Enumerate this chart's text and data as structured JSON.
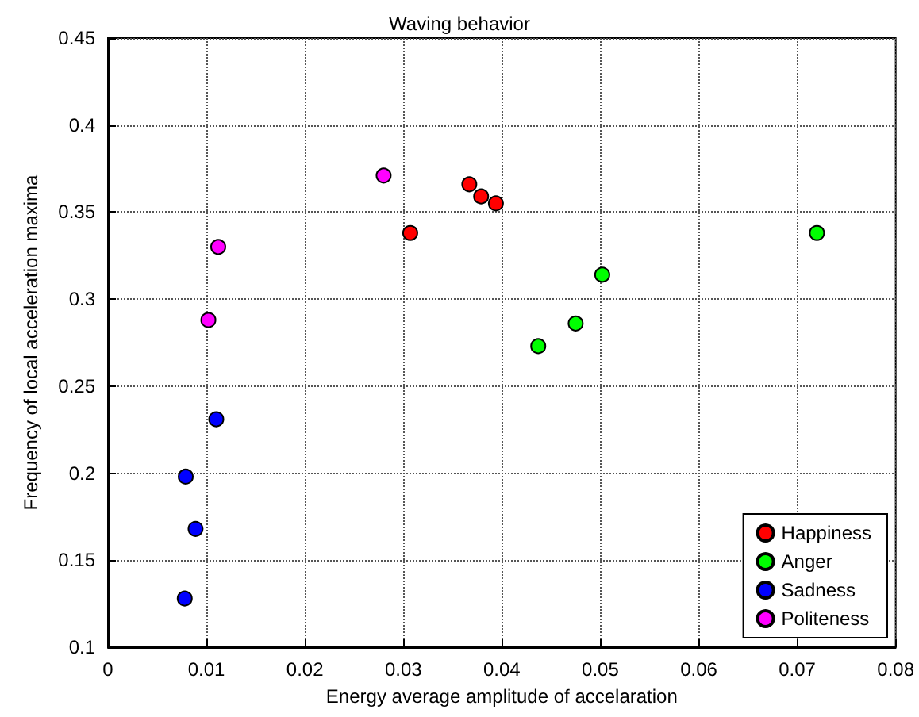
{
  "chart_data": {
    "type": "scatter",
    "title": "Waving behavior",
    "xlabel": "Energy average amplitude of accelaration",
    "ylabel": "Frequency of local acceleration maxima",
    "xlim": [
      0,
      0.08
    ],
    "xticks": [
      0,
      0.01,
      0.02,
      0.03,
      0.04,
      0.05,
      0.06,
      0.07,
      0.08
    ],
    "ylim": [
      0.1,
      0.45
    ],
    "yticks": [
      0.1,
      0.15,
      0.2,
      0.25,
      0.3,
      0.35,
      0.4,
      0.45
    ],
    "grid": true,
    "legend": "bottom right",
    "marker": "circle",
    "series": [
      {
        "name": "Happiness",
        "color": "#ff0000",
        "x": [
          0.0307,
          0.0367,
          0.0379,
          0.0394
        ],
        "values": [
          0.338,
          0.366,
          0.359,
          0.355
        ]
      },
      {
        "name": "Anger",
        "color": "#00ff00",
        "x": [
          0.072,
          0.0502,
          0.0475,
          0.0437
        ],
        "values": [
          0.338,
          0.314,
          0.286,
          0.273
        ]
      },
      {
        "name": "Sadness",
        "color": "#0000ff",
        "x": [
          0.011,
          0.0079,
          0.0089,
          0.0078
        ],
        "values": [
          0.231,
          0.198,
          0.168,
          0.128
        ]
      },
      {
        "name": "Politeness",
        "color": "#ff00ff",
        "x": [
          0.028,
          0.0112,
          0.0102
        ],
        "values": [
          0.371,
          0.33,
          0.288
        ]
      }
    ]
  }
}
